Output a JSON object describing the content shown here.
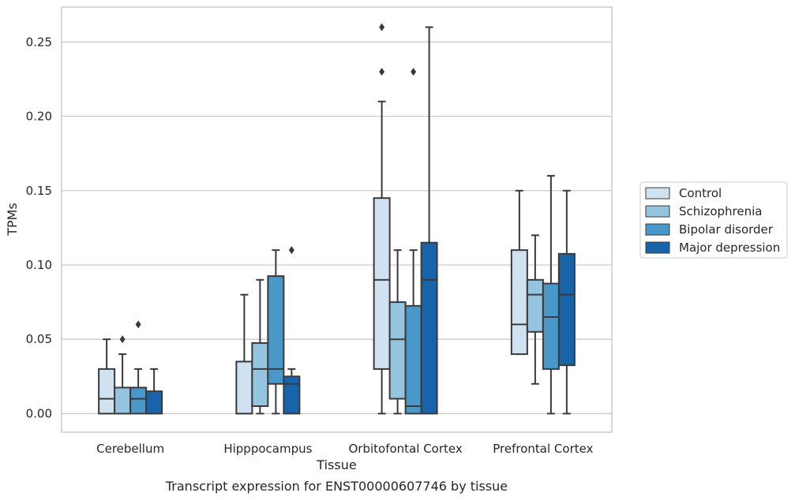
{
  "chart_data": {
    "type": "box",
    "xlabel": "Tissue",
    "ylabel": "TPMs",
    "caption": "Transcript expression for ENST00000607746 by tissue",
    "ylim": [
      -0.0125,
      0.2735
    ],
    "yticks": [
      "0.00",
      "0.05",
      "0.10",
      "0.15",
      "0.20",
      "0.25"
    ],
    "ytick_values": [
      0.0,
      0.05,
      0.1,
      0.15,
      0.2,
      0.25
    ],
    "grid": "horizontal",
    "legend_position": "right",
    "categories": [
      "Cerebellum",
      "Hipppocampus",
      "Orbitofontal Cortex",
      "Prefrontal Cortex"
    ],
    "series": [
      {
        "name": "Control",
        "color": "#d0e1f2",
        "boxes": [
          {
            "min": 0.0,
            "q1": 0.0,
            "median": 0.01,
            "q3": 0.03,
            "max": 0.05,
            "outliers": []
          },
          {
            "min": 0.0,
            "q1": 0.0,
            "median": 0.0,
            "q3": 0.035,
            "max": 0.08,
            "outliers": []
          },
          {
            "min": 0.0,
            "q1": 0.03,
            "median": 0.09,
            "q3": 0.145,
            "max": 0.21,
            "outliers": [
              0.23,
              0.26
            ]
          },
          {
            "min": 0.04,
            "q1": 0.04,
            "median": 0.06,
            "q3": 0.11,
            "max": 0.15,
            "outliers": []
          }
        ]
      },
      {
        "name": "Schizophrenia",
        "color": "#94c4df",
        "boxes": [
          {
            "min": 0.0,
            "q1": 0.0,
            "median": 0.0,
            "q3": 0.0175,
            "max": 0.04,
            "outliers": [
              0.05
            ]
          },
          {
            "min": 0.0,
            "q1": 0.005,
            "median": 0.03,
            "q3": 0.0475,
            "max": 0.09,
            "outliers": []
          },
          {
            "min": 0.0,
            "q1": 0.01,
            "median": 0.05,
            "q3": 0.075,
            "max": 0.11,
            "outliers": []
          },
          {
            "min": 0.02,
            "q1": 0.055,
            "median": 0.08,
            "q3": 0.09,
            "max": 0.12,
            "outliers": []
          }
        ]
      },
      {
        "name": "Bipolar disorder",
        "color": "#4a98c9",
        "boxes": [
          {
            "min": 0.0,
            "q1": 0.0,
            "median": 0.01,
            "q3": 0.0175,
            "max": 0.03,
            "outliers": [
              0.06
            ]
          },
          {
            "min": 0.0,
            "q1": 0.02,
            "median": 0.03,
            "q3": 0.0925,
            "max": 0.11,
            "outliers": []
          },
          {
            "min": 0.0,
            "q1": 0.0,
            "median": 0.005,
            "q3": 0.0725,
            "max": 0.11,
            "outliers": [
              0.23
            ]
          },
          {
            "min": 0.0,
            "q1": 0.03,
            "median": 0.065,
            "q3": 0.0875,
            "max": 0.16,
            "outliers": []
          }
        ]
      },
      {
        "name": "Major depression",
        "color": "#1764ab",
        "boxes": [
          {
            "min": 0.0,
            "q1": 0.0,
            "median": 0.0,
            "q3": 0.015,
            "max": 0.03,
            "outliers": []
          },
          {
            "min": 0.0,
            "q1": 0.0,
            "median": 0.02,
            "q3": 0.025,
            "max": 0.03,
            "outliers": [
              0.11
            ]
          },
          {
            "min": 0.0,
            "q1": 0.0,
            "median": 0.09,
            "q3": 0.115,
            "max": 0.26,
            "outliers": []
          },
          {
            "min": 0.0,
            "q1": 0.0325,
            "median": 0.08,
            "q3": 0.1075,
            "max": 0.15,
            "outliers": []
          }
        ]
      }
    ],
    "colors": {
      "grid": "#cccccc",
      "frame": "#cccccc",
      "box_edge": "#3a3a3a",
      "text": "#262626",
      "legend_border": "#cccccc"
    }
  }
}
